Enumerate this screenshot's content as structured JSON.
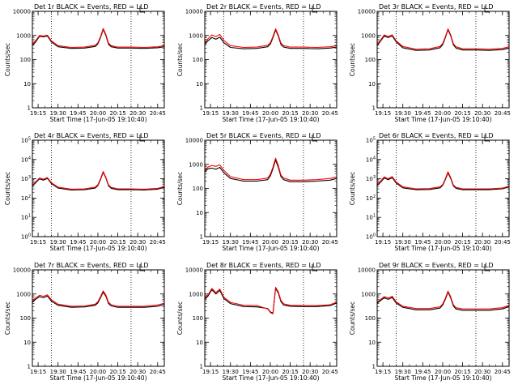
{
  "chart_data": [
    {
      "type": "line",
      "title": "Det 1r BLACK = Events, RED = LLD",
      "xlabel": "Start Time (17-Jun-05 19:10:40)",
      "ylabel": "Counts/sec",
      "ylog": true,
      "ylim": [
        1,
        10000
      ],
      "ytick_style": "plain",
      "xlim": [
        "19:10:40",
        "20:50:00"
      ],
      "xtick_labels": [
        "19:15",
        "19:30",
        "19:45",
        "20:00",
        "20:15",
        "20:30",
        "20:45"
      ],
      "vlines": [
        "19:25",
        "20:25"
      ],
      "x": [
        "19:10:40",
        "19:13",
        "19:16",
        "19:19",
        "19:22",
        "19:25",
        "19:30",
        "19:40",
        "19:50",
        "19:58",
        "20:00",
        "20:02",
        "20:04",
        "20:06",
        "20:08",
        "20:10",
        "20:15",
        "20:25",
        "20:35",
        "20:45",
        "20:50"
      ],
      "series": [
        {
          "color": "#000000",
          "values": [
            380,
            530,
            920,
            870,
            940,
            540,
            340,
            290,
            300,
            350,
            450,
            820,
            1800,
            1000,
            430,
            340,
            300,
            300,
            290,
            310,
            340
          ]
        },
        {
          "color": "#ff0000",
          "values": [
            420,
            600,
            1000,
            950,
            1030,
            600,
            380,
            320,
            330,
            390,
            500,
            900,
            1950,
            1100,
            480,
            380,
            330,
            330,
            320,
            340,
            380
          ]
        }
      ]
    },
    {
      "type": "line",
      "title": "Det 2r BLACK = Events, RED = LLD",
      "xlabel": "Start Time (17-Jun-05 19:10:40)",
      "ylabel": "Counts/sec",
      "ylog": true,
      "ylim": [
        1,
        10000
      ],
      "ytick_style": "plain",
      "xlim": [
        "19:10:40",
        "20:50:00"
      ],
      "xtick_labels": [
        "19:15",
        "19:30",
        "19:45",
        "20:00",
        "20:15",
        "20:30",
        "20:45"
      ],
      "vlines": [
        "19:25",
        "20:25"
      ],
      "x": [
        "19:10:40",
        "19:13",
        "19:16",
        "19:19",
        "19:22",
        "19:25",
        "19:30",
        "19:40",
        "19:50",
        "19:58",
        "20:00",
        "20:02",
        "20:04",
        "20:06",
        "20:08",
        "20:10",
        "20:15",
        "20:25",
        "20:35",
        "20:45",
        "20:50"
      ],
      "series": [
        {
          "color": "#000000",
          "values": [
            420,
            600,
            820,
            700,
            850,
            500,
            320,
            280,
            290,
            340,
            440,
            800,
            1700,
            950,
            420,
            330,
            290,
            290,
            280,
            300,
            330
          ]
        },
        {
          "color": "#ff0000",
          "values": [
            500,
            720,
            1050,
            900,
            1100,
            620,
            380,
            320,
            330,
            390,
            500,
            900,
            1900,
            1050,
            480,
            380,
            330,
            330,
            320,
            340,
            380
          ]
        }
      ]
    },
    {
      "type": "line",
      "title": "Det 3r BLACK = Events, RED = LLD",
      "xlabel": "Start Time (17-Jun-05 19:10:40)",
      "ylabel": "Counts/sec",
      "ylog": true,
      "ylim": [
        1,
        10000
      ],
      "ytick_style": "plain",
      "xlim": [
        "19:10:40",
        "20:50:00"
      ],
      "xtick_labels": [
        "19:15",
        "19:30",
        "19:45",
        "20:00",
        "20:15",
        "20:30",
        "20:45"
      ],
      "vlines": [
        "19:25",
        "20:25"
      ],
      "x": [
        "19:10:40",
        "19:13",
        "19:16",
        "19:19",
        "19:22",
        "19:25",
        "19:30",
        "19:40",
        "19:50",
        "19:58",
        "20:00",
        "20:02",
        "20:04",
        "20:06",
        "20:08",
        "20:10",
        "20:15",
        "20:25",
        "20:35",
        "20:45",
        "20:50"
      ],
      "series": [
        {
          "color": "#000000",
          "values": [
            380,
            560,
            950,
            820,
            960,
            540,
            310,
            240,
            250,
            310,
            420,
            800,
            1750,
            980,
            410,
            300,
            250,
            250,
            240,
            260,
            300
          ]
        },
        {
          "color": "#ff0000",
          "values": [
            420,
            620,
            1050,
            900,
            1060,
            600,
            350,
            270,
            280,
            350,
            470,
            880,
            1900,
            1080,
            460,
            340,
            280,
            280,
            270,
            290,
            340
          ]
        }
      ]
    },
    {
      "type": "line",
      "title": "Det 4r BLACK = Events, RED = LLD",
      "xlabel": "Start Time (17-Jun-05 19:10:40)",
      "ylabel": "Counts/sec",
      "ylog": true,
      "ylim": [
        1,
        100000
      ],
      "ytick_style": "exp",
      "xlim": [
        "19:10:40",
        "20:50:00"
      ],
      "xtick_labels": [
        "19:15",
        "19:30",
        "19:45",
        "20:00",
        "20:15",
        "20:30",
        "20:45"
      ],
      "vlines": [
        "19:25",
        "20:25"
      ],
      "x": [
        "19:10:40",
        "19:13",
        "19:16",
        "19:19",
        "19:22",
        "19:25",
        "19:30",
        "19:40",
        "19:50",
        "19:58",
        "20:00",
        "20:02",
        "20:04",
        "20:06",
        "20:08",
        "20:10",
        "20:15",
        "20:25",
        "20:35",
        "20:45",
        "20:50"
      ],
      "series": [
        {
          "color": "#000000",
          "values": [
            420,
            600,
            1000,
            850,
            1050,
            560,
            330,
            260,
            270,
            330,
            450,
            900,
            2200,
            1100,
            430,
            320,
            270,
            270,
            260,
            290,
            360
          ]
        },
        {
          "color": "#ff0000",
          "values": [
            470,
            680,
            1100,
            950,
            1150,
            620,
            370,
            290,
            300,
            370,
            500,
            1000,
            2400,
            1200,
            480,
            360,
            300,
            300,
            290,
            320,
            400
          ]
        }
      ]
    },
    {
      "type": "line",
      "title": "Det 5r BLACK = Events, RED = LLD",
      "xlabel": "Start Time (17-Jun-05 19:10:40)",
      "ylabel": "Counts/sec",
      "ylog": true,
      "ylim": [
        1,
        10000
      ],
      "ytick_style": "plain",
      "xlim": [
        "19:10:40",
        "20:50:00"
      ],
      "xtick_labels": [
        "19:15",
        "19:30",
        "19:45",
        "20:00",
        "20:15",
        "20:30",
        "20:45"
      ],
      "vlines": [
        "19:25",
        "20:25"
      ],
      "x": [
        "19:10:40",
        "19:13",
        "19:16",
        "19:19",
        "19:22",
        "19:25",
        "19:30",
        "19:40",
        "19:50",
        "19:58",
        "20:00",
        "20:02",
        "20:04",
        "20:06",
        "20:08",
        "20:10",
        "20:15",
        "20:25",
        "20:35",
        "20:45",
        "20:50"
      ],
      "series": [
        {
          "color": "#000000",
          "values": [
            480,
            650,
            700,
            620,
            750,
            450,
            260,
            200,
            200,
            230,
            330,
            650,
            1500,
            760,
            310,
            230,
            190,
            190,
            200,
            220,
            260
          ]
        },
        {
          "color": "#ff0000",
          "values": [
            560,
            760,
            900,
            820,
            950,
            560,
            310,
            230,
            230,
            270,
            390,
            760,
            1800,
            900,
            360,
            270,
            220,
            220,
            230,
            260,
            300
          ]
        }
      ]
    },
    {
      "type": "line",
      "title": "Det 6r BLACK = Events, RED = LLD",
      "xlabel": "Start Time (17-Jun-05 19:10:40)",
      "ylabel": "Counts/sec",
      "ylog": true,
      "ylim": [
        1,
        100000
      ],
      "ytick_style": "exp",
      "xlim": [
        "19:10:40",
        "20:50:00"
      ],
      "xtick_labels": [
        "19:15",
        "19:30",
        "19:45",
        "20:00",
        "20:15",
        "20:30",
        "20:45"
      ],
      "vlines": [
        "19:25",
        "20:25"
      ],
      "x": [
        "19:10:40",
        "19:13",
        "19:16",
        "19:19",
        "19:22",
        "19:25",
        "19:30",
        "19:40",
        "19:50",
        "19:58",
        "20:00",
        "20:02",
        "20:04",
        "20:06",
        "20:08",
        "20:10",
        "20:15",
        "20:25",
        "20:35",
        "20:45",
        "20:50"
      ],
      "series": [
        {
          "color": "#000000",
          "values": [
            450,
            640,
            1100,
            900,
            1150,
            600,
            340,
            270,
            280,
            340,
            460,
            900,
            2000,
            1050,
            430,
            320,
            270,
            270,
            270,
            300,
            380
          ]
        },
        {
          "color": "#ff0000",
          "values": [
            500,
            720,
            1250,
            1000,
            1300,
            680,
            380,
            300,
            310,
            380,
            510,
            1000,
            2300,
            1180,
            480,
            360,
            300,
            300,
            300,
            330,
            420
          ]
        }
      ]
    },
    {
      "type": "line",
      "title": "Det 7r BLACK = Events, RED = LLD",
      "xlabel": "Start Time (17-Jun-05 19:10:40)",
      "ylabel": "Counts/sec",
      "ylog": true,
      "ylim": [
        1,
        10000
      ],
      "ytick_style": "plain",
      "xlim": [
        "19:10:40",
        "20:50:00"
      ],
      "xtick_labels": [
        "19:15",
        "19:30",
        "19:45",
        "20:00",
        "20:15",
        "20:30",
        "20:45"
      ],
      "vlines": [
        "19:25",
        "20:25"
      ],
      "x": [
        "19:10:40",
        "19:13",
        "19:16",
        "19:19",
        "19:22",
        "19:25",
        "19:30",
        "19:40",
        "19:50",
        "19:58",
        "20:00",
        "20:02",
        "20:04",
        "20:06",
        "20:08",
        "20:10",
        "20:15",
        "20:25",
        "20:35",
        "20:45",
        "20:50"
      ],
      "series": [
        {
          "color": "#000000",
          "values": [
            440,
            600,
            780,
            700,
            820,
            500,
            340,
            280,
            290,
            340,
            430,
            700,
            1200,
            800,
            400,
            320,
            280,
            280,
            280,
            310,
            370
          ]
        },
        {
          "color": "#ff0000",
          "values": [
            500,
            680,
            880,
            800,
            920,
            570,
            380,
            310,
            320,
            380,
            480,
            780,
            1350,
            900,
            450,
            360,
            310,
            310,
            310,
            350,
            410
          ]
        }
      ]
    },
    {
      "type": "line",
      "title": "Det 8r BLACK = Events, RED = LLD",
      "xlabel": "Start Time (17-Jun-05 19:10:40)",
      "ylabel": "Counts/sec",
      "ylog": true,
      "ylim": [
        1,
        10000
      ],
      "ytick_style": "plain",
      "xlim": [
        "19:10:40",
        "20:50:00"
      ],
      "xtick_labels": [
        "19:15",
        "19:30",
        "19:45",
        "20:00",
        "20:15",
        "20:30",
        "20:45"
      ],
      "vlines": [
        "19:25",
        "20:25"
      ],
      "x": [
        "19:10:40",
        "19:13",
        "19:16",
        "19:19",
        "19:22",
        "19:25",
        "19:30",
        "19:40",
        "19:50",
        "19:58",
        "20:00",
        "20:02",
        "20:04",
        "20:06",
        "20:08",
        "20:10",
        "20:15",
        "20:25",
        "20:35",
        "20:45",
        "20:50"
      ],
      "series": [
        {
          "color": "#000000",
          "values": [
            600,
            800,
            1500,
            1000,
            1400,
            650,
            400,
            300,
            290,
            250,
            180,
            160,
            1700,
            1100,
            480,
            350,
            310,
            300,
            300,
            330,
            420
          ]
        },
        {
          "color": "#ff0000",
          "values": [
            700,
            900,
            1700,
            1150,
            1600,
            750,
            450,
            340,
            330,
            240,
            170,
            150,
            1900,
            1250,
            540,
            390,
            340,
            330,
            330,
            360,
            460
          ]
        }
      ]
    },
    {
      "type": "line",
      "title": "Det 9r BLACK = Events, RED = LLD",
      "xlabel": "Start Time (17-Jun-05 19:10:40)",
      "ylabel": "Counts/sec",
      "ylog": true,
      "ylim": [
        1,
        10000
      ],
      "ytick_style": "plain",
      "xlim": [
        "19:10:40",
        "20:50:00"
      ],
      "xtick_labels": [
        "19:15",
        "19:30",
        "19:45",
        "20:00",
        "20:15",
        "20:30",
        "20:45"
      ],
      "vlines": [
        "19:25",
        "20:25"
      ],
      "x": [
        "19:10:40",
        "19:13",
        "19:16",
        "19:19",
        "19:22",
        "19:25",
        "19:30",
        "19:40",
        "19:50",
        "19:58",
        "20:00",
        "20:02",
        "20:04",
        "20:06",
        "20:08",
        "20:10",
        "20:15",
        "20:25",
        "20:35",
        "20:45",
        "20:50"
      ],
      "series": [
        {
          "color": "#000000",
          "values": [
            420,
            520,
            700,
            600,
            720,
            420,
            280,
            220,
            220,
            260,
            350,
            600,
            1200,
            700,
            320,
            240,
            210,
            210,
            210,
            240,
            300
          ]
        },
        {
          "color": "#ff0000",
          "values": [
            470,
            580,
            780,
            680,
            800,
            470,
            310,
            250,
            250,
            290,
            390,
            660,
            1320,
            780,
            360,
            270,
            240,
            240,
            240,
            270,
            340
          ]
        }
      ]
    }
  ]
}
